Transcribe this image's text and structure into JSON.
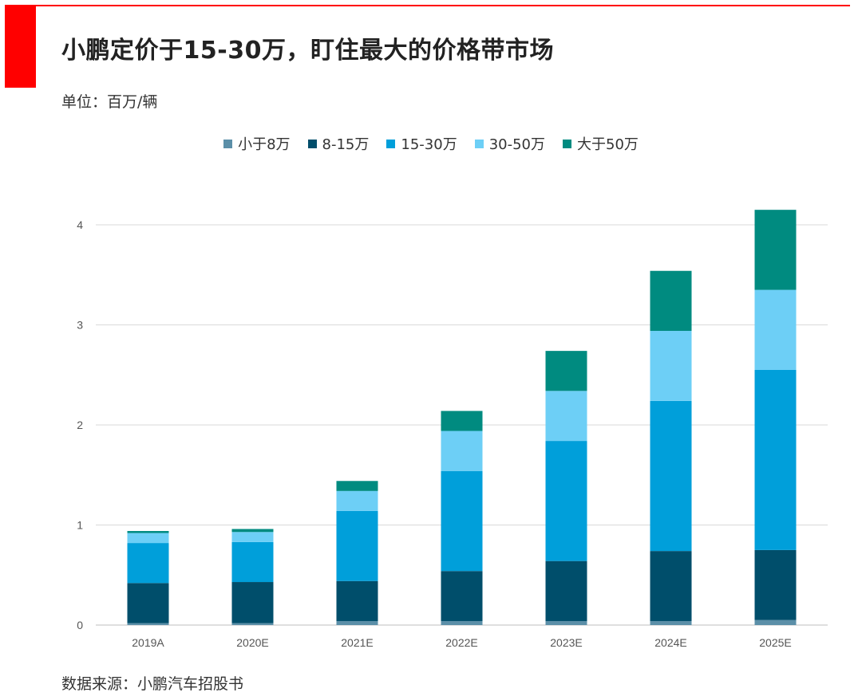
{
  "header": {
    "title": "小鹏定价于15-30万，盯住最大的价格带市场",
    "unit": "单位：百万/辆",
    "accent_color": "#ff0000"
  },
  "footer": {
    "source": "数据来源：小鹏汽车招股书"
  },
  "chart_data": {
    "type": "bar",
    "stacked": true,
    "categories": [
      "2019A",
      "2020E",
      "2021E",
      "2022E",
      "2023E",
      "2024E",
      "2025E"
    ],
    "series": [
      {
        "name": "小于8万",
        "color": "#5b8fa8",
        "values": [
          0.02,
          0.02,
          0.04,
          0.04,
          0.04,
          0.04,
          0.05
        ]
      },
      {
        "name": "8-15万",
        "color": "#004e6b",
        "values": [
          0.4,
          0.41,
          0.4,
          0.5,
          0.6,
          0.7,
          0.7
        ]
      },
      {
        "name": "15-30万",
        "color": "#009fda",
        "values": [
          0.4,
          0.4,
          0.7,
          1.0,
          1.2,
          1.5,
          1.8
        ]
      },
      {
        "name": "30-50万",
        "color": "#6dcff6",
        "values": [
          0.1,
          0.1,
          0.2,
          0.4,
          0.5,
          0.7,
          0.8
        ]
      },
      {
        "name": "大于50万",
        "color": "#008b80",
        "values": [
          0.02,
          0.03,
          0.1,
          0.2,
          0.4,
          0.6,
          0.8
        ]
      }
    ],
    "yticks": [
      0,
      1,
      2,
      3,
      4
    ],
    "ylim": [
      0,
      4.2
    ],
    "grid": true,
    "legend_position": "top-center"
  }
}
